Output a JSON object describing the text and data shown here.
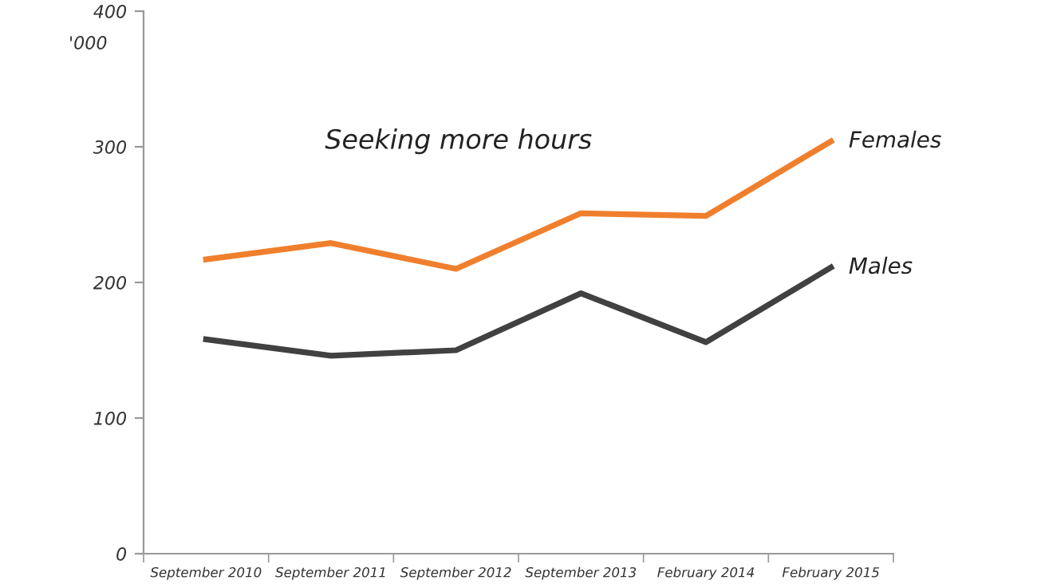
{
  "chart_data": {
    "type": "line",
    "title": "Seeking more hours",
    "ylabel": "'000",
    "categories": [
      "September 2010",
      "September 2011",
      "September 2012",
      "September 2013",
      "February 2014",
      "February 2015"
    ],
    "series": [
      {
        "name": "Females",
        "color": "#f07f2d",
        "values": [
          217,
          229,
          210,
          251,
          249,
          304
        ]
      },
      {
        "name": "Males",
        "color": "#414141",
        "values": [
          158,
          146,
          150,
          192,
          156,
          211
        ]
      }
    ],
    "ylim": [
      0,
      400
    ],
    "yticks": [
      0,
      100,
      200,
      300,
      400
    ],
    "grid": false,
    "marker": "none",
    "line_style": "solid"
  }
}
